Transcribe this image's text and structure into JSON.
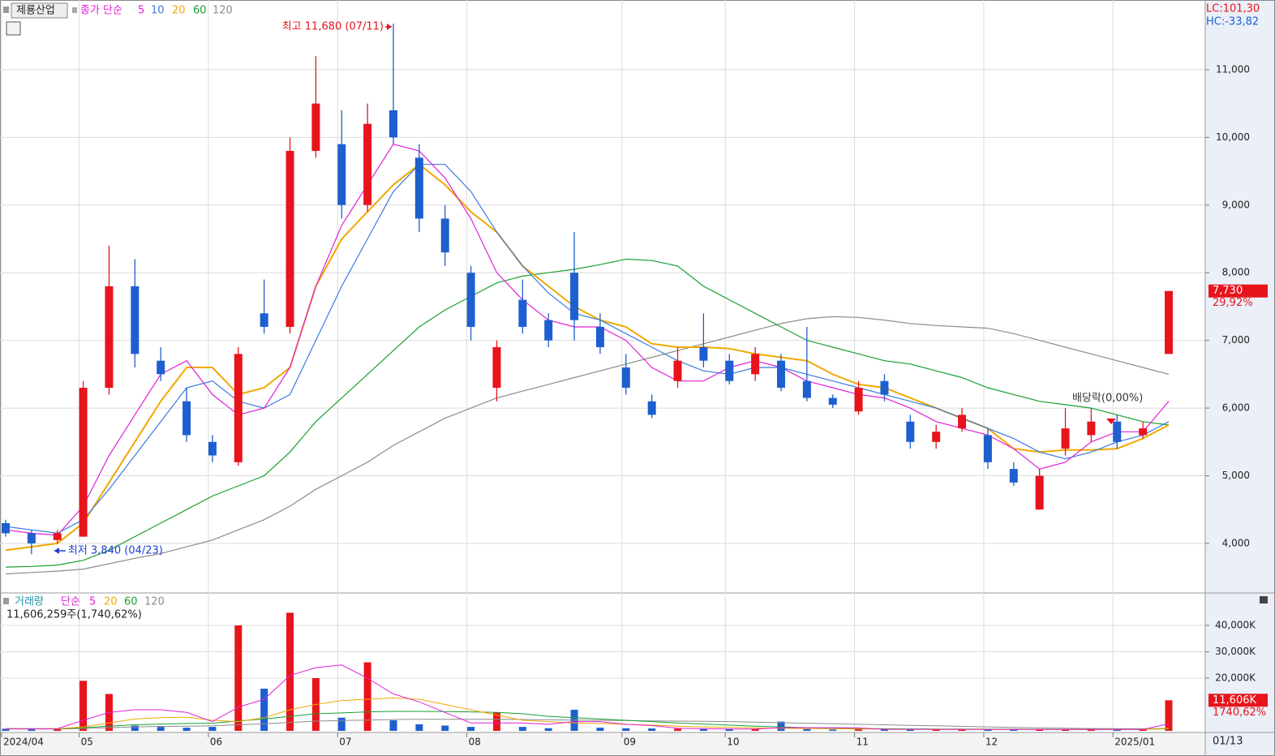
{
  "chart_data": [
    {
      "type": "candlestick",
      "title": "제룡산업",
      "legend_label": "종가 단순",
      "up_color": "#e8141c",
      "down_color": "#1e5fd0",
      "categories": [
        "2024/04",
        null,
        null,
        "05",
        null,
        null,
        null,
        null,
        "06",
        null,
        null,
        null,
        null,
        "07",
        null,
        null,
        null,
        null,
        "08",
        null,
        null,
        null,
        null,
        null,
        "09",
        null,
        null,
        null,
        "10",
        null,
        null,
        null,
        null,
        "11",
        null,
        null,
        null,
        null,
        "12",
        null,
        null,
        null,
        null,
        "2025/01",
        null,
        null
      ],
      "open": [
        4300,
        4150,
        4050,
        4100,
        6300,
        7800,
        6700,
        6100,
        5500,
        5200,
        7400,
        7200,
        9800,
        9900,
        9000,
        10400,
        9700,
        8800,
        8000,
        6300,
        7600,
        7300,
        8000,
        7200,
        6600,
        6100,
        6400,
        6900,
        6700,
        6500,
        6700,
        6400,
        6150,
        5950,
        6400,
        5800,
        5500,
        5700,
        5600,
        5100,
        4500,
        5400,
        5600,
        5800,
        5600,
        6800
      ],
      "high": [
        4350,
        4200,
        4200,
        6400,
        8400,
        8200,
        6900,
        6300,
        5600,
        6900,
        7900,
        10000,
        11200,
        10400,
        10500,
        11680,
        9900,
        9000,
        8100,
        7000,
        7900,
        7400,
        8600,
        7400,
        6800,
        6200,
        6900,
        7400,
        6800,
        6900,
        6800,
        7200,
        6200,
        6400,
        6500,
        5900,
        5750,
        6000,
        5700,
        5200,
        5100,
        6000,
        6000,
        5900,
        5800,
        7730
      ],
      "low": [
        4100,
        3840,
        4000,
        4100,
        6200,
        6600,
        6400,
        5500,
        5200,
        5150,
        7100,
        7100,
        9700,
        8800,
        8900,
        9900,
        8600,
        8100,
        7000,
        6100,
        7100,
        6900,
        7000,
        6800,
        6200,
        5850,
        6300,
        6600,
        6350,
        6400,
        6250,
        6100,
        6000,
        5900,
        6100,
        5400,
        5400,
        5650,
        5100,
        4850,
        4500,
        5300,
        5500,
        5400,
        5550,
        6800
      ],
      "close": [
        4150,
        4000,
        4150,
        6300,
        7800,
        6800,
        6500,
        5600,
        5300,
        6800,
        7200,
        9800,
        10500,
        9000,
        10200,
        10000,
        8800,
        8300,
        7200,
        6900,
        7200,
        7000,
        7300,
        6900,
        6300,
        5900,
        6700,
        6700,
        6400,
        6800,
        6300,
        6150,
        6050,
        6300,
        6200,
        5500,
        5650,
        5900,
        5200,
        4900,
        5000,
        5700,
        5800,
        5500,
        5700,
        7730
      ],
      "series": [
        {
          "name": "5",
          "color": "#e020d8",
          "values": [
            4200,
            4150,
            4120,
            4550,
            5300,
            5900,
            6500,
            6700,
            6200,
            5900,
            6000,
            6600,
            7800,
            8700,
            9300,
            9900,
            9800,
            9400,
            8800,
            8000,
            7600,
            7300,
            7200,
            7200,
            7000,
            6600,
            6400,
            6400,
            6600,
            6700,
            6600,
            6400,
            6300,
            6200,
            6150,
            6000,
            5800,
            5700,
            5600,
            5400,
            5100,
            5200,
            5500,
            5650,
            5650,
            6100
          ]
        },
        {
          "name": "10",
          "color": "#3a7be0",
          "values": [
            4250,
            4200,
            4150,
            4350,
            4800,
            5300,
            5800,
            6300,
            6400,
            6100,
            6000,
            6200,
            7000,
            7800,
            8500,
            9200,
            9600,
            9600,
            9200,
            8600,
            8100,
            7700,
            7400,
            7300,
            7100,
            6900,
            6700,
            6550,
            6500,
            6600,
            6600,
            6500,
            6400,
            6300,
            6200,
            6100,
            6000,
            5850,
            5700,
            5550,
            5350,
            5250,
            5350,
            5500,
            5600,
            5800
          ]
        },
        {
          "name": "20",
          "color": "#f0a800",
          "values": [
            3900,
            3950,
            4000,
            4300,
            4900,
            5500,
            6100,
            6600,
            6600,
            6200,
            6300,
            6600,
            7800,
            8500,
            8900,
            9300,
            9600,
            9300,
            8900,
            8600,
            8100,
            7800,
            7500,
            7300,
            7200,
            6950,
            6900,
            6900,
            6880,
            6800,
            6750,
            6700,
            6500,
            6350,
            6300,
            6150,
            6000,
            5850,
            5700,
            5400,
            5350,
            5380,
            5380,
            5400,
            5550,
            5750
          ]
        },
        {
          "name": "60",
          "color": "#18a030",
          "values": [
            3650,
            3660,
            3680,
            3750,
            3900,
            4100,
            4300,
            4500,
            4700,
            4850,
            5000,
            5350,
            5800,
            6150,
            6500,
            6850,
            7200,
            7450,
            7650,
            7850,
            7950,
            8000,
            8050,
            8120,
            8200,
            8180,
            8100,
            7800,
            7600,
            7400,
            7200,
            7000,
            6900,
            6800,
            6700,
            6650,
            6550,
            6450,
            6300,
            6200,
            6100,
            6050,
            6000,
            5900,
            5800,
            5750
          ]
        },
        {
          "name": "120",
          "color": "#8c8c8c",
          "values": [
            3550,
            3570,
            3590,
            3620,
            3700,
            3780,
            3850,
            3950,
            4050,
            4200,
            4350,
            4550,
            4800,
            5000,
            5200,
            5450,
            5650,
            5850,
            6000,
            6150,
            6250,
            6350,
            6450,
            6550,
            6650,
            6750,
            6850,
            6950,
            7050,
            7150,
            7250,
            7320,
            7350,
            7340,
            7300,
            7250,
            7220,
            7200,
            7180,
            7100,
            7000,
            6900,
            6800,
            6700,
            6600,
            6500
          ]
        }
      ],
      "ylim": [
        3280,
        12030
      ],
      "yticks": [
        {
          "value": 4000,
          "label": "4,000"
        },
        {
          "value": 5000,
          "label": "5,000"
        },
        {
          "value": 6000,
          "label": "6,000"
        },
        {
          "value": 7000,
          "label": "7,000"
        },
        {
          "value": 8000,
          "label": "8,000"
        },
        {
          "value": 9000,
          "label": "9,000"
        },
        {
          "value": 10000,
          "label": "10,000"
        },
        {
          "value": 11000,
          "label": "11,000"
        }
      ],
      "grid": true,
      "high_note": "최고 11,680 (07/11)",
      "low_note": "최저 3,840 (04/23)",
      "dividend_note": "배당락(0,00%)",
      "lc": "LC:101,30",
      "hc": "HC:-33,82",
      "last_price": {
        "value": 7730,
        "label": "7,730"
      },
      "change": "29,92%",
      "last_date": "01/13"
    },
    {
      "type": "bar",
      "title": "거래량",
      "legend_label": "단순",
      "summary": "11,606,259주(1,740,62%)",
      "values": [
        800,
        600,
        900,
        19000,
        14000,
        2000,
        1500,
        1200,
        1500,
        40000,
        16000,
        44800,
        20000,
        5000,
        26000,
        4000,
        2500,
        2000,
        1500,
        7000,
        1500,
        1000,
        8000,
        1200,
        1000,
        900,
        800,
        700,
        700,
        600,
        3500,
        700,
        500,
        600,
        500,
        700,
        500,
        500,
        600,
        500,
        700,
        600,
        500,
        400,
        500,
        11606
      ],
      "series": [
        {
          "name": "5",
          "color": "#e020d8",
          "values": [
            900,
            800,
            800,
            4000,
            7000,
            8000,
            8000,
            7000,
            3500,
            9000,
            12000,
            21000,
            24000,
            25000,
            20000,
            14000,
            11000,
            7000,
            3000,
            3000,
            3000,
            2500,
            3500,
            3500,
            2500,
            2000,
            1000,
            800,
            700,
            700,
            1200,
            1200,
            1200,
            1100,
            600,
            600,
            550,
            550,
            550,
            550,
            550,
            550,
            550,
            550,
            550,
            2700
          ]
        },
        {
          "name": "20",
          "color": "#f0a800",
          "values": [
            800,
            800,
            800,
            1500,
            3000,
            4500,
            5000,
            5200,
            4000,
            3500,
            5000,
            8000,
            10000,
            11500,
            12000,
            12500,
            12000,
            10000,
            8000,
            6000,
            4000,
            3500,
            3000,
            2800,
            2500,
            2200,
            1800,
            1500,
            1300,
            1100,
            1000,
            900,
            800,
            700,
            650,
            600,
            600,
            580,
            560,
            540,
            540,
            540,
            520,
            520,
            520,
            1000
          ]
        },
        {
          "name": "60",
          "color": "#18a030",
          "values": [
            800,
            800,
            800,
            1200,
            1800,
            2300,
            2600,
            2800,
            2900,
            3800,
            4500,
            5500,
            6500,
            6800,
            7200,
            7400,
            7400,
            7300,
            7200,
            7000,
            6500,
            5500,
            5000,
            4500,
            4000,
            3500,
            3000,
            2600,
            2200,
            1800,
            1500,
            1200,
            1000,
            900,
            800,
            750,
            700,
            680,
            660,
            640,
            620,
            600,
            600,
            600,
            600,
            800
          ]
        },
        {
          "name": "120",
          "color": "#8c8c8c",
          "values": [
            700,
            700,
            700,
            900,
            1200,
            1500,
            1700,
            1800,
            1900,
            2300,
            2700,
            3200,
            3700,
            3900,
            4100,
            4300,
            4400,
            4400,
            4400,
            4400,
            4300,
            4200,
            4100,
            4000,
            3900,
            3800,
            3700,
            3600,
            3500,
            3300,
            3100,
            2900,
            2700,
            2500,
            2300,
            2100,
            1900,
            1700,
            1500,
            1300,
            1100,
            1000,
            900,
            850,
            800,
            900
          ]
        }
      ],
      "ylim": [
        0,
        51700
      ],
      "yticks": [
        {
          "value": 20000,
          "label": "20,000K"
        },
        {
          "value": 30000,
          "label": "30,000K"
        },
        {
          "value": 40000,
          "label": "40,000K"
        }
      ],
      "last_volume": {
        "value": 11606,
        "label": "11,606K"
      },
      "change": "1740,62%"
    }
  ]
}
